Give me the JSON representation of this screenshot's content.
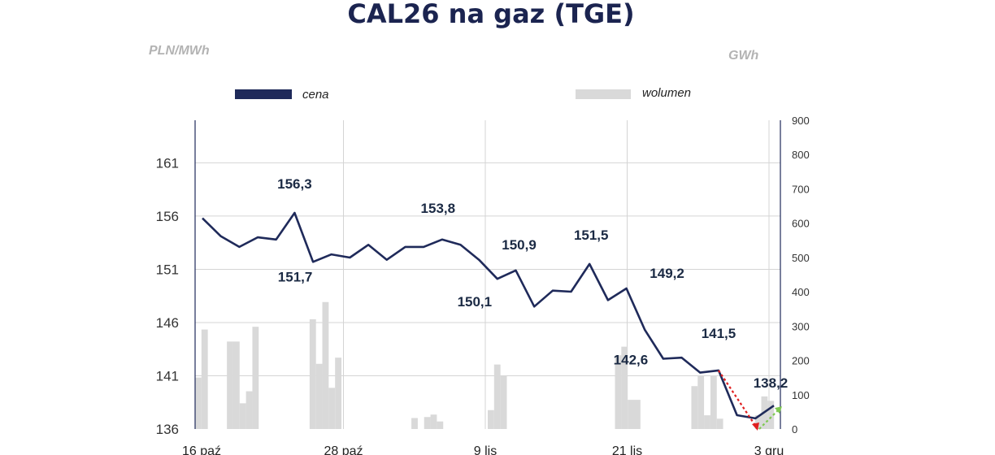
{
  "chart_data": {
    "type": "line",
    "title": "CAL26 na gaz (TGE)",
    "y_left_unit": "PLN/MWh",
    "y_right_unit": "GWh",
    "y_left_ticks": [
      "161",
      "156",
      "151",
      "146",
      "141",
      "136"
    ],
    "y_left_lim": [
      136,
      165
    ],
    "y_right_ticks": [
      "900",
      "800",
      "700",
      "600",
      "500",
      "400",
      "300",
      "200",
      "100",
      "0"
    ],
    "y_right_lim": [
      0,
      900
    ],
    "x_ticks": [
      "16 paź",
      "28 paź",
      "9 lis",
      "21 lis",
      "3 gru"
    ],
    "grid": true,
    "legend_position": "top",
    "series": [
      {
        "name": "cena",
        "type": "line",
        "color": "#1f2a5a",
        "values": [
          155.8,
          154.1,
          153.1,
          154.0,
          153.8,
          156.3,
          151.7,
          152.4,
          152.1,
          153.3,
          151.9,
          153.1,
          153.1,
          153.8,
          153.3,
          151.9,
          150.1,
          150.9,
          147.5,
          149.0,
          148.9,
          151.5,
          148.1,
          149.2,
          145.3,
          142.6,
          142.7,
          141.3,
          141.5,
          137.3,
          137.0,
          138.2
        ]
      },
      {
        "name": "wolumen",
        "type": "bar",
        "color": "#d9d9d9",
        "values": [
          150,
          290,
          0,
          0,
          0,
          255,
          255,
          75,
          110,
          298,
          0,
          0,
          0,
          0,
          0,
          0,
          0,
          0,
          320,
          190,
          370,
          120,
          208,
          0,
          0,
          0,
          0,
          0,
          0,
          0,
          0,
          0,
          0,
          0,
          32,
          0,
          35,
          42,
          22,
          0,
          0,
          0,
          0,
          0,
          0,
          0,
          55,
          188,
          155,
          0,
          0,
          0,
          0,
          0,
          0,
          0,
          0,
          0,
          0,
          0,
          0,
          0,
          0,
          0,
          0,
          0,
          215,
          240,
          85,
          85,
          0,
          0,
          0,
          0,
          0,
          0,
          0,
          0,
          125,
          155,
          40,
          155,
          30,
          0,
          0,
          0,
          0,
          0,
          40,
          95,
          82,
          0
        ]
      }
    ],
    "annotations": [
      {
        "text": "156,3",
        "point_index": 5,
        "value": 156.3
      },
      {
        "text": "151,7",
        "point_index": 6,
        "value": 151.7
      },
      {
        "text": "153,8",
        "point_index": 13,
        "value": 153.8
      },
      {
        "text": "150,1",
        "point_index": 16,
        "value": 150.1
      },
      {
        "text": "150,9",
        "point_index": 17,
        "value": 150.9
      },
      {
        "text": "151,5",
        "point_index": 21,
        "value": 151.5
      },
      {
        "text": "149,2",
        "point_index": 23,
        "value": 149.2
      },
      {
        "text": "142,6",
        "point_index": 25,
        "value": 142.6
      },
      {
        "text": "141,5",
        "point_index": 28,
        "value": 141.5
      },
      {
        "text": "138,2",
        "point_index": 31,
        "value": 138.2
      }
    ],
    "trend_arrows": [
      {
        "color": "#e02020",
        "from_point_index": 28,
        "to_value": 136.0
      },
      {
        "color": "#7ec850",
        "from_value": 136.0,
        "to_value": 137.9
      }
    ]
  }
}
